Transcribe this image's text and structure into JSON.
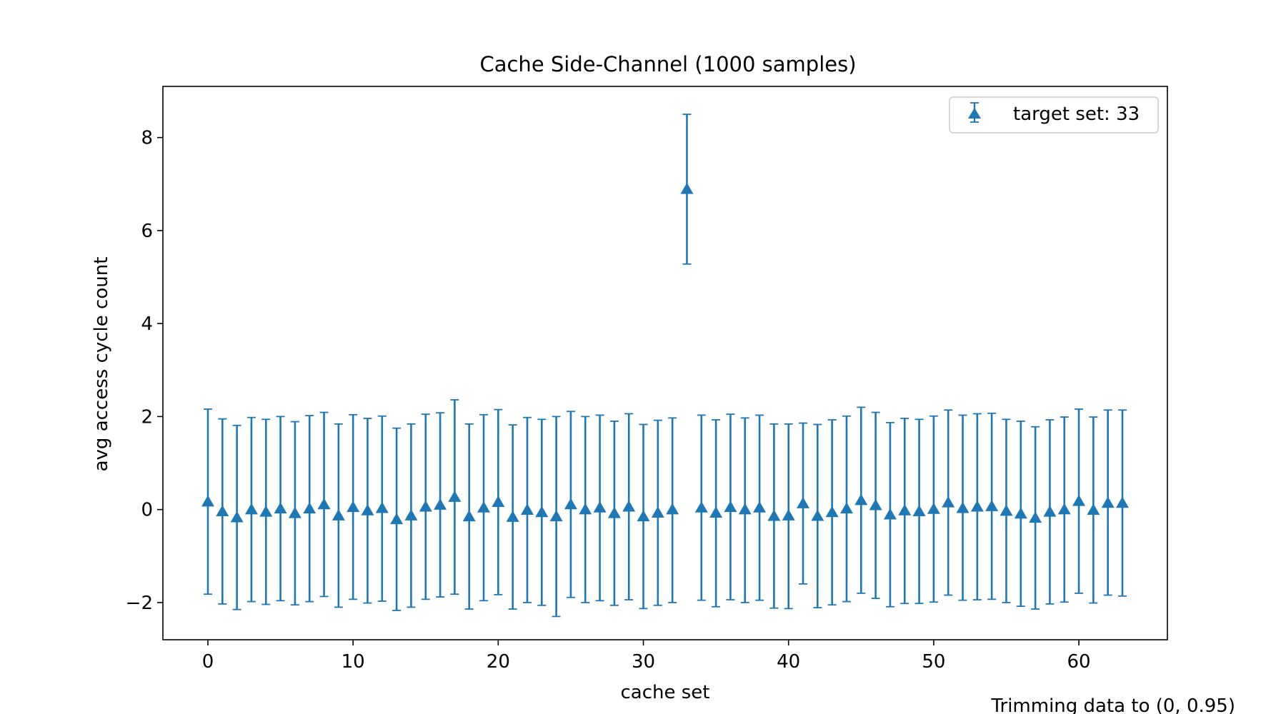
{
  "chart_data": {
    "type": "scatter",
    "title": "Cache Side-Channel (1000 samples)",
    "xlabel": "cache set",
    "ylabel": "avg access cycle count",
    "xlim": [
      -3.1,
      66.1
    ],
    "ylim": [
      -2.8,
      9.1
    ],
    "xticks": [
      0,
      10,
      20,
      30,
      40,
      50,
      60
    ],
    "yticks": [
      -2,
      0,
      2,
      4,
      6,
      8
    ],
    "grid": false,
    "legend_position": "top-right",
    "marker": "triangle-up",
    "color": "#1f77b4",
    "series": [
      {
        "name": "target set: 33",
        "x": [
          0,
          1,
          2,
          3,
          4,
          5,
          6,
          7,
          8,
          9,
          10,
          11,
          12,
          13,
          14,
          15,
          16,
          17,
          18,
          19,
          20,
          21,
          22,
          23,
          24,
          25,
          26,
          27,
          28,
          29,
          30,
          31,
          32,
          33,
          34,
          35,
          36,
          37,
          38,
          39,
          40,
          41,
          42,
          43,
          44,
          45,
          46,
          47,
          48,
          49,
          50,
          51,
          52,
          53,
          54,
          55,
          56,
          57,
          58,
          59,
          60,
          61,
          62,
          63
        ],
        "y": [
          0.17,
          -0.04,
          -0.17,
          0.0,
          -0.05,
          0.02,
          -0.08,
          0.02,
          0.11,
          -0.13,
          0.05,
          -0.02,
          0.03,
          -0.21,
          -0.13,
          0.06,
          0.1,
          0.27,
          -0.15,
          0.04,
          0.16,
          -0.16,
          -0.01,
          -0.06,
          -0.15,
          0.11,
          0.0,
          0.04,
          -0.08,
          0.06,
          -0.15,
          -0.07,
          0.0,
          6.89,
          0.04,
          -0.07,
          0.05,
          0.0,
          0.04,
          -0.14,
          -0.13,
          0.13,
          -0.14,
          -0.06,
          0.02,
          0.2,
          0.09,
          -0.11,
          -0.02,
          -0.04,
          0.01,
          0.15,
          0.03,
          0.06,
          0.07,
          -0.03,
          -0.09,
          -0.18,
          -0.05,
          0.0,
          0.18,
          -0.01,
          0.14,
          0.14
        ],
        "yerr_low": [
          1.99,
          1.99,
          1.98,
          1.98,
          1.99,
          1.98,
          1.97,
          2.0,
          1.98,
          1.97,
          1.98,
          1.99,
          2.0,
          1.96,
          1.97,
          1.99,
          1.98,
          2.09,
          1.99,
          2.0,
          1.99,
          1.98,
          1.99,
          2.0,
          2.15,
          2.0,
          2.0,
          2.0,
          1.98,
          2.0,
          1.98,
          1.99,
          2.0,
          1.61,
          1.99,
          2.02,
          1.99,
          2.0,
          1.99,
          1.98,
          2.0,
          1.73,
          1.97,
          1.99,
          2.0,
          2.0,
          2.0,
          1.98,
          2.0,
          1.98,
          2.0,
          1.99,
          1.98,
          2.0,
          2.0,
          1.97,
          1.99,
          1.96,
          1.98,
          1.99,
          1.98,
          2.0,
          1.98,
          2.0
        ],
        "yerr_high": [
          1.99,
          1.99,
          1.98,
          1.98,
          1.99,
          1.98,
          1.97,
          2.0,
          1.98,
          1.97,
          1.99,
          1.98,
          1.98,
          1.96,
          1.97,
          1.99,
          1.98,
          2.09,
          1.99,
          2.0,
          1.99,
          1.98,
          1.99,
          2.0,
          2.15,
          2.0,
          2.0,
          1.99,
          1.98,
          2.0,
          1.98,
          1.99,
          1.97,
          1.61,
          1.99,
          2.0,
          2.0,
          1.97,
          1.99,
          1.98,
          1.97,
          1.73,
          1.97,
          1.99,
          1.99,
          2.0,
          2.0,
          1.98,
          1.98,
          1.98,
          2.0,
          1.99,
          2.0,
          2.0,
          2.0,
          1.97,
          1.99,
          1.96,
          1.98,
          1.99,
          1.98,
          2.0,
          2.0,
          2.0
        ]
      }
    ],
    "annotation": "Trimming data to (0, 0.95)"
  }
}
